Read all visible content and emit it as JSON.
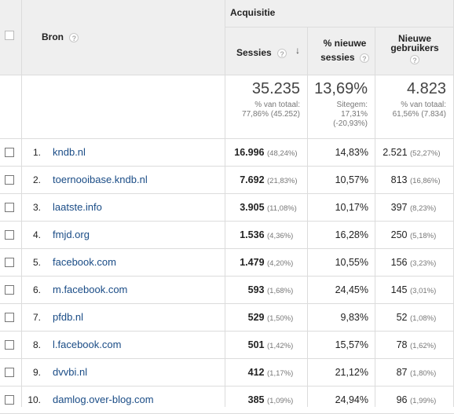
{
  "header": {
    "group": "Acquisitie",
    "source_col": "Bron",
    "sessions_col": "Sessies",
    "new_sessions_col": [
      "% nieuwe",
      "sessies"
    ],
    "new_users_col": [
      "Nieuwe",
      "gebruikers"
    ],
    "help_glyph": "?",
    "sort_glyph": "↓"
  },
  "totals": {
    "sessions": "35.235",
    "sessions_sub1": "% van totaal:",
    "sessions_sub2": "77,86% (45.252)",
    "new_sessions": "13,69%",
    "new_sessions_sub1": "Sitegem:",
    "new_sessions_sub2": "17,31%",
    "new_sessions_sub3": "(-20,93%)",
    "new_users": "4.823",
    "new_users_sub1": "% van totaal:",
    "new_users_sub2": "61,56% (7.834)"
  },
  "rows": [
    {
      "rank": "1.",
      "source": "kndb.nl",
      "sessions": "16.996",
      "sessions_pct": "(48,24%)",
      "new_sessions": "14,83%",
      "new_users": "2.521",
      "new_users_pct": "(52,27%)"
    },
    {
      "rank": "2.",
      "source": "toernooibase.kndb.nl",
      "sessions": "7.692",
      "sessions_pct": "(21,83%)",
      "new_sessions": "10,57%",
      "new_users": "813",
      "new_users_pct": "(16,86%)"
    },
    {
      "rank": "3.",
      "source": "laatste.info",
      "sessions": "3.905",
      "sessions_pct": "(11,08%)",
      "new_sessions": "10,17%",
      "new_users": "397",
      "new_users_pct": "(8,23%)"
    },
    {
      "rank": "4.",
      "source": "fmjd.org",
      "sessions": "1.536",
      "sessions_pct": "(4,36%)",
      "new_sessions": "16,28%",
      "new_users": "250",
      "new_users_pct": "(5,18%)"
    },
    {
      "rank": "5.",
      "source": "facebook.com",
      "sessions": "1.479",
      "sessions_pct": "(4,20%)",
      "new_sessions": "10,55%",
      "new_users": "156",
      "new_users_pct": "(3,23%)"
    },
    {
      "rank": "6.",
      "source": "m.facebook.com",
      "sessions": "593",
      "sessions_pct": "(1,68%)",
      "new_sessions": "24,45%",
      "new_users": "145",
      "new_users_pct": "(3,01%)"
    },
    {
      "rank": "7.",
      "source": "pfdb.nl",
      "sessions": "529",
      "sessions_pct": "(1,50%)",
      "new_sessions": "9,83%",
      "new_users": "52",
      "new_users_pct": "(1,08%)"
    },
    {
      "rank": "8.",
      "source": "l.facebook.com",
      "sessions": "501",
      "sessions_pct": "(1,42%)",
      "new_sessions": "15,57%",
      "new_users": "78",
      "new_users_pct": "(1,62%)"
    },
    {
      "rank": "9.",
      "source": "dvvbi.nl",
      "sessions": "412",
      "sessions_pct": "(1,17%)",
      "new_sessions": "21,12%",
      "new_users": "87",
      "new_users_pct": "(1,80%)"
    },
    {
      "rank": "10.",
      "source": "damlog.over-blog.com",
      "sessions": "385",
      "sessions_pct": "(1,09%)",
      "new_sessions": "24,94%",
      "new_users": "96",
      "new_users_pct": "(1,99%)"
    }
  ]
}
